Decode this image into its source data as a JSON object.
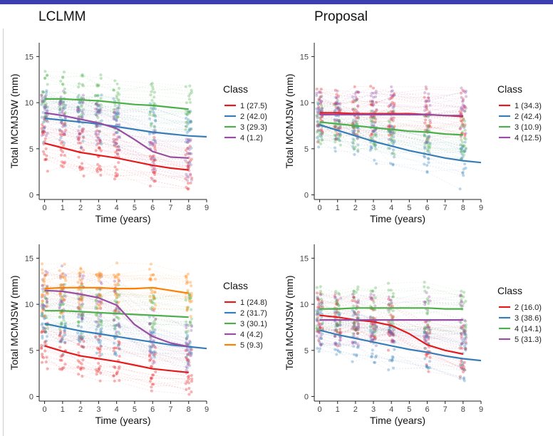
{
  "headings": {
    "left": "LCLMM",
    "right": "Proposal"
  },
  "colors": {
    "1": "#e41a1c",
    "2": "#377eb8",
    "3": "#4daf4a",
    "4": "#984ea3",
    "5": "#ff7f00"
  },
  "chart_data": [
    {
      "type": "line",
      "xlabel": "Time (years)",
      "ylabel": "Total MCMJSW (mm)",
      "xlim": [
        -0.3,
        9
      ],
      "ylim": [
        -0.5,
        16.5
      ],
      "xticks": [
        0,
        1,
        2,
        3,
        4,
        5,
        6,
        7,
        8,
        9
      ],
      "yticks": [
        0,
        5,
        10,
        15
      ],
      "legend_title": "Class",
      "legend_position": "right",
      "visit_times": [
        0,
        1,
        2,
        3,
        4,
        6,
        8
      ],
      "series": [
        {
          "name": "1 (27.5)",
          "class": "1",
          "x": [
            0,
            1,
            2,
            3,
            4,
            5,
            6,
            7,
            8
          ],
          "y": [
            5.6,
            5.1,
            4.6,
            4.3,
            4.0,
            3.6,
            3.2,
            2.9,
            2.7
          ]
        },
        {
          "name": "2 (42.0)",
          "class": "2",
          "x": [
            0,
            1,
            2,
            3,
            4,
            5,
            6,
            7,
            8,
            9
          ],
          "y": [
            8.3,
            8.1,
            7.9,
            7.7,
            7.4,
            7.1,
            6.8,
            6.6,
            6.4,
            6.3
          ]
        },
        {
          "name": "3 (29.3)",
          "class": "3",
          "x": [
            0,
            1,
            2,
            3,
            4,
            5,
            6,
            7,
            8
          ],
          "y": [
            10.4,
            10.4,
            10.3,
            10.2,
            10.0,
            9.8,
            9.7,
            9.5,
            9.3
          ]
        },
        {
          "name": "4 (1.2)",
          "class": "4",
          "x": [
            0,
            1,
            2,
            3,
            4,
            5,
            6,
            7,
            8
          ],
          "y": [
            8.9,
            8.6,
            8.2,
            7.8,
            7.2,
            6.0,
            4.7,
            4.1,
            4.0
          ]
        }
      ]
    },
    {
      "type": "line",
      "xlabel": "Time (years)",
      "ylabel": "Total MCMJSW (mm)",
      "xlim": [
        -0.3,
        9
      ],
      "ylim": [
        -0.5,
        16.5
      ],
      "xticks": [
        0,
        1,
        2,
        3,
        4,
        5,
        6,
        7,
        8,
        9
      ],
      "yticks": [
        0,
        5,
        10,
        15
      ],
      "legend_title": "Class",
      "legend_position": "right",
      "visit_times": [
        0,
        1,
        2,
        3,
        4,
        6,
        8
      ],
      "series": [
        {
          "name": "1 (34.3)",
          "class": "1",
          "x": [
            0,
            1,
            2,
            3,
            4,
            5,
            6,
            7,
            8
          ],
          "y": [
            8.9,
            8.9,
            8.8,
            8.8,
            8.8,
            8.8,
            8.7,
            8.6,
            8.5
          ]
        },
        {
          "name": "2 (42.4)",
          "class": "2",
          "x": [
            0,
            1,
            2,
            3,
            4,
            5,
            6,
            7,
            8,
            9
          ],
          "y": [
            7.6,
            7.0,
            6.4,
            5.8,
            5.3,
            4.8,
            4.4,
            4.0,
            3.7,
            3.5
          ]
        },
        {
          "name": "3 (10.9)",
          "class": "3",
          "x": [
            0,
            1,
            2,
            3,
            4,
            5,
            6,
            7,
            8
          ],
          "y": [
            7.9,
            7.7,
            7.5,
            7.3,
            7.1,
            6.9,
            6.8,
            6.6,
            6.5
          ]
        },
        {
          "name": "4 (12.5)",
          "class": "4",
          "x": [
            0,
            1,
            2,
            3,
            4,
            5,
            6,
            7,
            8
          ],
          "y": [
            8.7,
            8.7,
            8.7,
            8.7,
            8.7,
            8.7,
            8.7,
            8.6,
            8.6
          ]
        }
      ]
    },
    {
      "type": "line",
      "xlabel": "Time (years)",
      "ylabel": "Total MCMJSW (mm)",
      "xlim": [
        -0.3,
        9
      ],
      "ylim": [
        -0.5,
        16.5
      ],
      "xticks": [
        0,
        1,
        2,
        3,
        4,
        5,
        6,
        7,
        8,
        9
      ],
      "yticks": [
        0,
        5,
        10,
        15
      ],
      "legend_title": "Class",
      "legend_position": "right",
      "visit_times": [
        0,
        1,
        2,
        3,
        4,
        6,
        8
      ],
      "series": [
        {
          "name": "1 (24.8)",
          "class": "1",
          "x": [
            0,
            1,
            2,
            3,
            4,
            5,
            6,
            7,
            8
          ],
          "y": [
            5.5,
            4.9,
            4.4,
            4.1,
            3.8,
            3.4,
            3.0,
            2.8,
            2.6
          ]
        },
        {
          "name": "2 (31.7)",
          "class": "2",
          "x": [
            0,
            1,
            2,
            3,
            4,
            5,
            6,
            7,
            8,
            9
          ],
          "y": [
            7.9,
            7.5,
            7.1,
            6.8,
            6.5,
            6.2,
            5.9,
            5.6,
            5.4,
            5.2
          ]
        },
        {
          "name": "3 (30.1)",
          "class": "3",
          "x": [
            0,
            1,
            2,
            3,
            4,
            5,
            6,
            7,
            8
          ],
          "y": [
            9.3,
            9.3,
            9.2,
            9.1,
            9.0,
            8.9,
            8.8,
            8.7,
            8.6
          ]
        },
        {
          "name": "4 (4.2)",
          "class": "4",
          "x": [
            0,
            1,
            2,
            3,
            4,
            5,
            6,
            7,
            8
          ],
          "y": [
            11.5,
            11.4,
            11.1,
            10.7,
            9.9,
            7.8,
            6.5,
            5.8,
            5.4
          ]
        },
        {
          "name": "5 (9.3)",
          "class": "5",
          "x": [
            0,
            1,
            2,
            3,
            4,
            5,
            6,
            7,
            8
          ],
          "y": [
            11.7,
            11.8,
            11.8,
            11.8,
            11.7,
            11.7,
            11.8,
            11.5,
            11.2
          ]
        }
      ]
    },
    {
      "type": "line",
      "xlabel": "Time (years)",
      "ylabel": "Total MCMJSW (mm)",
      "xlim": [
        -0.3,
        9
      ],
      "ylim": [
        -0.5,
        16.5
      ],
      "xticks": [
        0,
        1,
        2,
        3,
        4,
        5,
        6,
        7,
        8,
        9
      ],
      "yticks": [
        0,
        5,
        10,
        15
      ],
      "legend_title": "Class",
      "legend_position": "right",
      "visit_times": [
        0,
        1,
        2,
        3,
        4,
        6,
        8
      ],
      "series": [
        {
          "name": "2 (16.0)",
          "class": "1",
          "x": [
            0,
            1,
            2,
            3,
            4,
            5,
            6,
            7,
            8
          ],
          "y": [
            8.8,
            8.6,
            8.3,
            8.1,
            7.7,
            6.8,
            5.6,
            5.0,
            4.6
          ]
        },
        {
          "name": "3 (38.6)",
          "class": "2",
          "x": [
            0,
            1,
            2,
            3,
            4,
            5,
            6,
            7,
            8,
            9
          ],
          "y": [
            7.2,
            6.7,
            6.3,
            5.9,
            5.5,
            5.1,
            4.8,
            4.4,
            4.1,
            3.9
          ]
        },
        {
          "name": "4 (14.1)",
          "class": "3",
          "x": [
            0,
            1,
            2,
            3,
            4,
            5,
            6,
            7,
            8
          ],
          "y": [
            9.5,
            9.5,
            9.6,
            9.6,
            9.6,
            9.6,
            9.6,
            9.5,
            9.5
          ]
        },
        {
          "name": "5 (31.3)",
          "class": "4",
          "x": [
            0,
            1,
            2,
            3,
            4,
            5,
            6,
            7,
            8
          ],
          "y": [
            8.3,
            8.3,
            8.3,
            8.3,
            8.3,
            8.3,
            8.3,
            8.3,
            8.3
          ]
        }
      ]
    }
  ]
}
